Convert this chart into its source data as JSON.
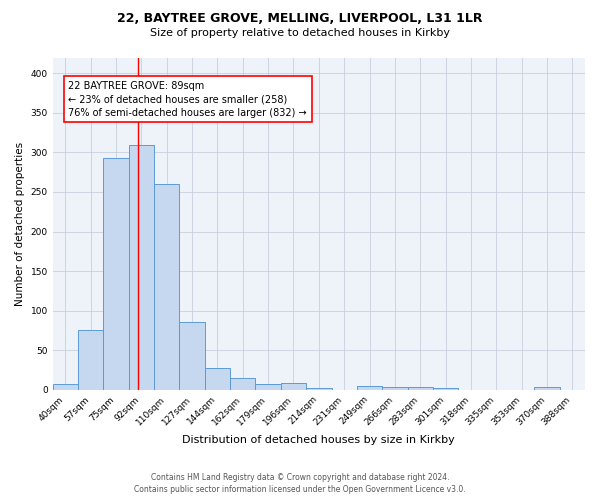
{
  "title_line1": "22, BAYTREE GROVE, MELLING, LIVERPOOL, L31 1LR",
  "title_line2": "Size of property relative to detached houses in Kirkby",
  "xlabel": "Distribution of detached houses by size in Kirkby",
  "ylabel": "Number of detached properties",
  "footer_line1": "Contains HM Land Registry data © Crown copyright and database right 2024.",
  "footer_line2": "Contains public sector information licensed under the Open Government Licence v3.0.",
  "annotation_line1": "22 BAYTREE GROVE: 89sqm",
  "annotation_line2": "← 23% of detached houses are smaller (258)",
  "annotation_line3": "76% of semi-detached houses are larger (832) →",
  "bar_labels": [
    "40sqm",
    "57sqm",
    "75sqm",
    "92sqm",
    "110sqm",
    "127sqm",
    "144sqm",
    "162sqm",
    "179sqm",
    "196sqm",
    "214sqm",
    "231sqm",
    "249sqm",
    "266sqm",
    "283sqm",
    "301sqm",
    "318sqm",
    "335sqm",
    "353sqm",
    "370sqm",
    "388sqm"
  ],
  "bar_values": [
    7,
    75,
    293,
    310,
    260,
    85,
    28,
    15,
    7,
    8,
    2,
    0,
    5,
    4,
    3,
    2,
    0,
    0,
    0,
    3,
    0
  ],
  "bar_color": "#c5d8f0",
  "bar_edge_color": "#5b9bd5",
  "grid_color": "#c8d0dc",
  "background_color": "#eef2f9",
  "red_line_x": 2.85,
  "ylim": [
    0,
    420
  ],
  "xlim": [
    -0.5,
    20.5
  ],
  "title1_fontsize": 9,
  "title2_fontsize": 8,
  "xlabel_fontsize": 8,
  "ylabel_fontsize": 7.5,
  "tick_fontsize": 6.5,
  "footer_fontsize": 5.5,
  "ann_fontsize": 7
}
